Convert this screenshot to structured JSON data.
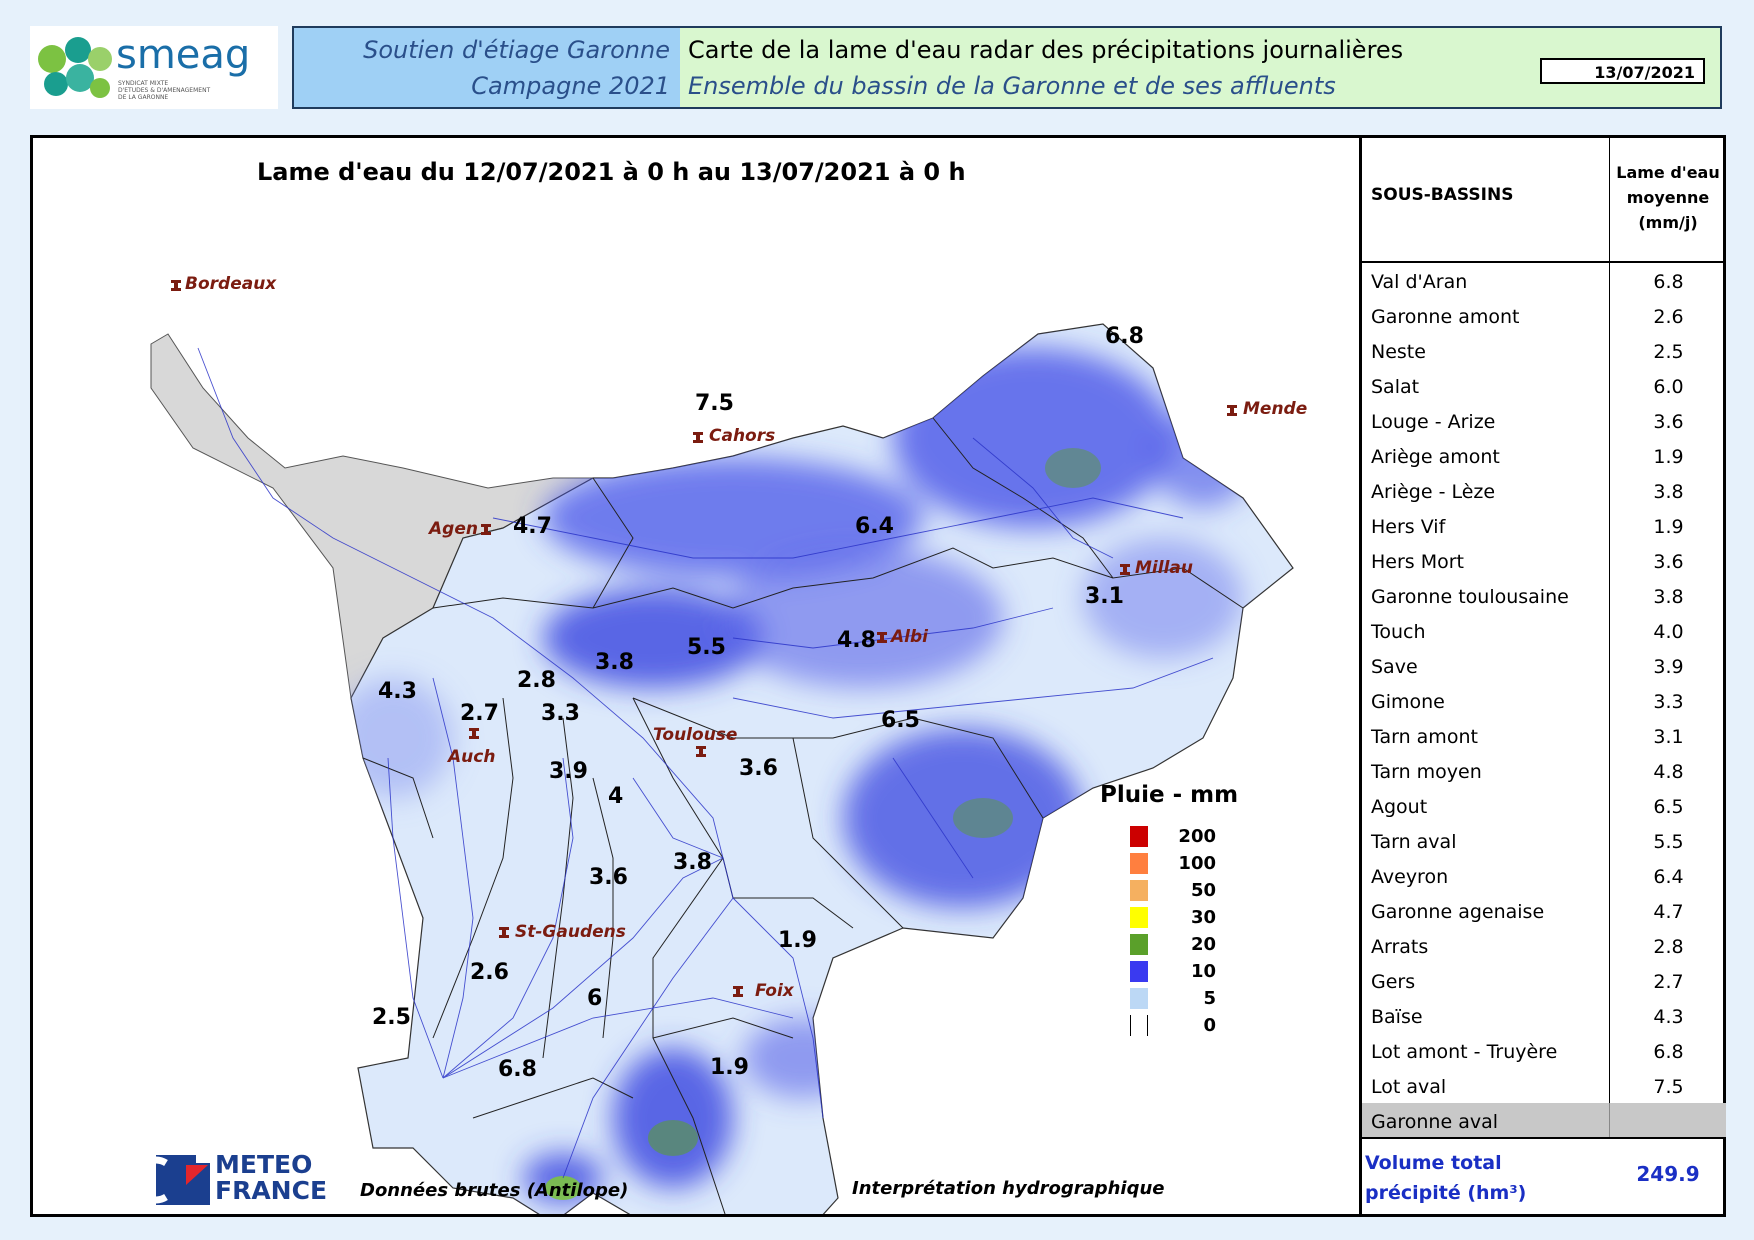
{
  "header": {
    "logo_text": "smeag",
    "logo_subtitle_lines": [
      "SYNDICAT MIXTE",
      "D'ETUDES & D'AMENAGEMENT",
      "DE LA GARONNE"
    ],
    "left_line1": "Soutien d'étiage Garonne",
    "left_line2": "Campagne 2021",
    "right_line1": "Carte de la lame d'eau radar des précipitations journalières",
    "right_line2": "Ensemble du bassin de la Garonne et de ses affluents",
    "date": "13/07/2021"
  },
  "map": {
    "title": "Lame d'eau du 12/07/2021 à 0 h au 13/07/2021 à 0 h",
    "cities": [
      "Bordeaux",
      "Cahors",
      "Mende",
      "Agen",
      "Millau",
      "Albi",
      "Toulouse",
      "Auch",
      "St-Gaudens",
      "Foix"
    ],
    "basin_values": [
      "7.5",
      "6.8",
      "4.7",
      "6.4",
      "3.1",
      "4.8",
      "5.5",
      "3.8",
      "2.8",
      "4.3",
      "2.7",
      "3.3",
      "6.5",
      "3.6",
      "3.9",
      "4",
      "3.8",
      "3.6",
      "1.9",
      "2.6",
      "6",
      "2.5",
      "6.8",
      "1.9"
    ],
    "legend": {
      "title": "Pluie - mm",
      "items": [
        {
          "value": "200",
          "color": "#cc0000"
        },
        {
          "value": "100",
          "color": "#ff7f3f"
        },
        {
          "value": "50",
          "color": "#f5b060"
        },
        {
          "value": "30",
          "color": "#ffff00"
        },
        {
          "value": "20",
          "color": "#5aa02a"
        },
        {
          "value": "10",
          "color": "#3a3af0"
        },
        {
          "value": "5",
          "color": "#bcd8f5"
        },
        {
          "value": "0",
          "color": "#ffffff"
        }
      ]
    },
    "footer_left": "Données brutes (Antilope)",
    "footer_right": "Interprétation hydrographique",
    "meteo_logo_lines": [
      "METEO",
      "FRANCE"
    ]
  },
  "table": {
    "header_col1": "SOUS-BASSINS",
    "header_col2_lines": [
      "Lame d'eau",
      "moyenne",
      "(mm/j)"
    ],
    "rows": [
      {
        "name": "Val d'Aran",
        "value": "6.8"
      },
      {
        "name": "Garonne amont",
        "value": "2.6"
      },
      {
        "name": "Neste",
        "value": "2.5"
      },
      {
        "name": "Salat",
        "value": "6.0"
      },
      {
        "name": "Louge - Arize",
        "value": "3.6"
      },
      {
        "name": "Ariège amont",
        "value": "1.9"
      },
      {
        "name": "Ariège - Lèze",
        "value": "3.8"
      },
      {
        "name": "Hers Vif",
        "value": "1.9"
      },
      {
        "name": "Hers Mort",
        "value": "3.6"
      },
      {
        "name": "Garonne toulousaine",
        "value": "3.8"
      },
      {
        "name": "Touch",
        "value": "4.0"
      },
      {
        "name": "Save",
        "value": "3.9"
      },
      {
        "name": "Gimone",
        "value": "3.3"
      },
      {
        "name": "Tarn amont",
        "value": "3.1"
      },
      {
        "name": "Tarn moyen",
        "value": "4.8"
      },
      {
        "name": "Agout",
        "value": "6.5"
      },
      {
        "name": "Tarn aval",
        "value": "5.5"
      },
      {
        "name": "Aveyron",
        "value": "6.4"
      },
      {
        "name": "Garonne agenaise",
        "value": "4.7"
      },
      {
        "name": "Arrats",
        "value": "2.8"
      },
      {
        "name": "Gers",
        "value": "2.7"
      },
      {
        "name": "Baïse",
        "value": "4.3"
      },
      {
        "name": "Lot amont - Truyère",
        "value": "6.8"
      },
      {
        "name": "Lot aval",
        "value": "7.5"
      },
      {
        "name": "Garonne aval",
        "value": ""
      }
    ],
    "total_label_lines": [
      "Volume total",
      "précipité (hm³)"
    ],
    "total_value": "249.9",
    "colors": {
      "highlight_row": "#c8c8c8",
      "total_text": "#1a2fc4"
    }
  }
}
